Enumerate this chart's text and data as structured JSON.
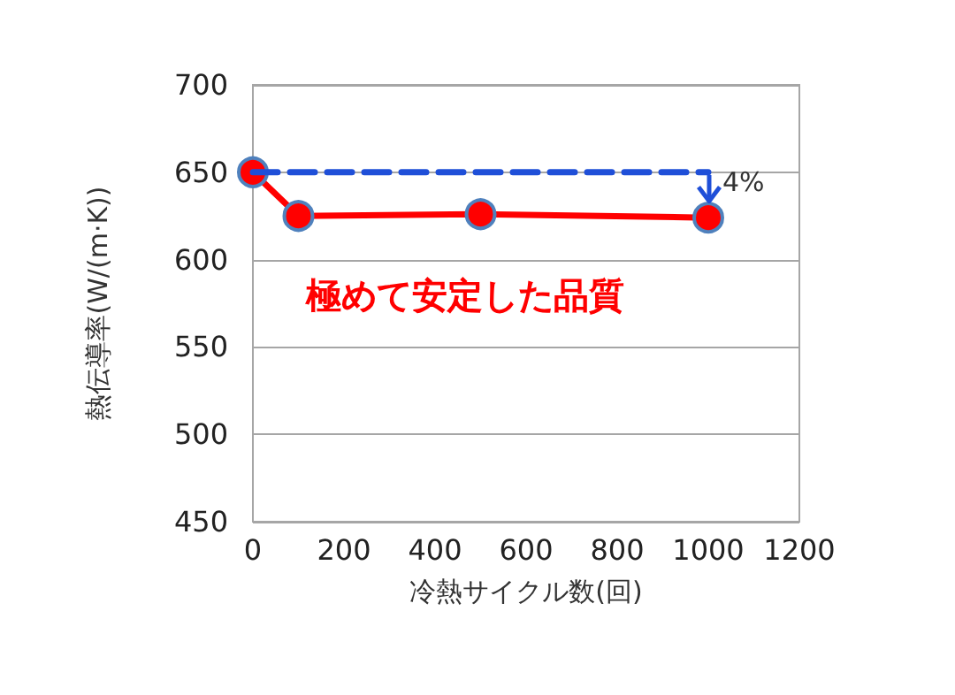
{
  "chart_data": {
    "type": "line",
    "xlabel": "冷熱サイクル数(回)",
    "ylabel": "熱伝導率(W/(m·K))",
    "x": [
      0,
      100,
      500,
      1000
    ],
    "series": [
      {
        "color": "#ff0000",
        "values": [
          650,
          625,
          626,
          624
        ]
      },
      {
        "type": "line",
        "color": "#1f4fd8",
        "x": [
          0,
          1000
        ],
        "values": [
          650,
          650
        ],
        "line_style": "dashed",
        "marker": "none"
      }
    ],
    "xlim": [
      0,
      1200
    ],
    "xticks": [
      0,
      200,
      400,
      600,
      800,
      1000,
      1200
    ],
    "ylim": [
      450,
      700
    ],
    "yticks": [
      450,
      500,
      550,
      600,
      650,
      700
    ],
    "grid": "y",
    "marker": "circle",
    "line_style": "solid",
    "annotations": [
      "極めて安定した品質",
      {
        "text": "4%",
        "x": 1000,
        "y": 637
      }
    ]
  }
}
